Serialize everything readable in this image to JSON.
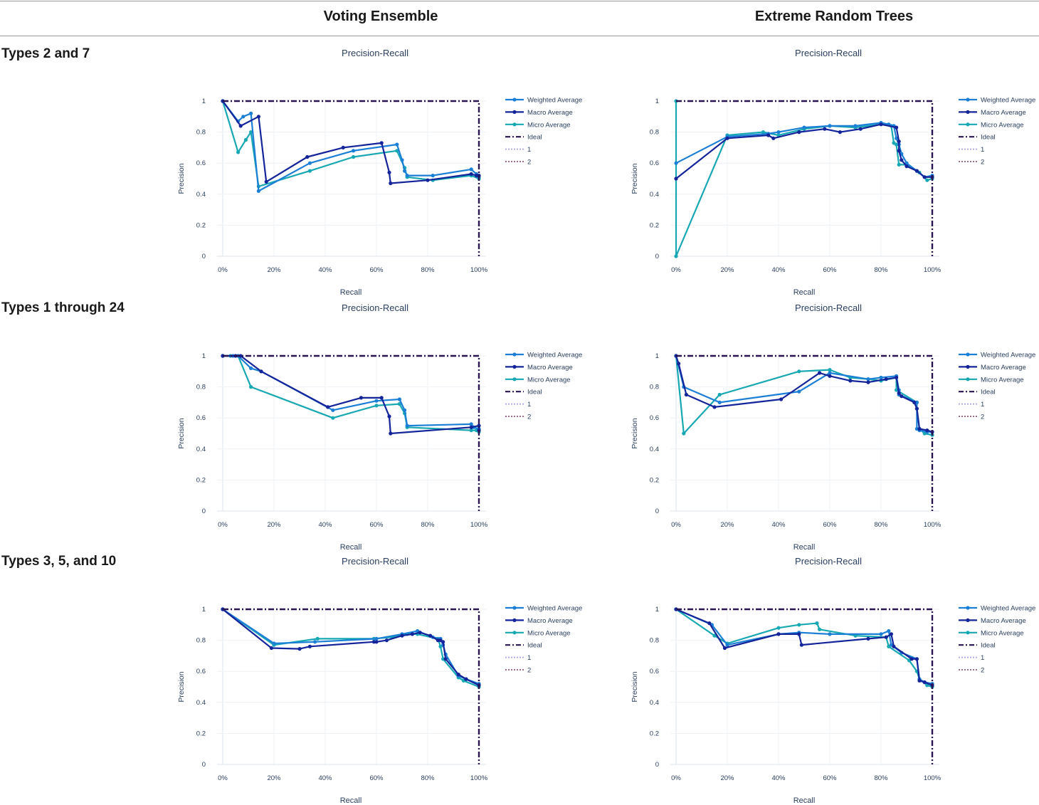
{
  "columns": [
    "Voting Ensemble",
    "Extreme Random Trees"
  ],
  "rows": [
    "Types 2 and 7",
    "Types 1 through 24",
    "Types 3, 5, and 10"
  ],
  "colors": {
    "weighted": "#1c7fd6",
    "macro": "#14249a",
    "micro": "#17a8b3",
    "ideal": "#2a1452",
    "class1": "#b7a9e6",
    "class2": "#9b6f8c",
    "grid": "#eef1f6",
    "zeroline": "#dde3ee",
    "text": "#2a3f5f"
  },
  "chart_data": [
    {
      "type": "line",
      "row": "Types 2 and 7",
      "column": "Voting Ensemble",
      "title": "Precision-Recall",
      "xlabel": "Recall",
      "ylabel": "Precision",
      "xlim": [
        0,
        1
      ],
      "ylim": [
        0,
        1
      ],
      "xticks": [
        "0%",
        "20%",
        "40%",
        "60%",
        "80%",
        "100%"
      ],
      "yticks": [
        "0",
        "0.2",
        "0.4",
        "0.6",
        "0.8",
        "1"
      ],
      "legend": [
        "Weighted Average",
        "Macro Average",
        "Micro Average",
        "Ideal",
        "1",
        "2"
      ],
      "series": [
        {
          "name": "Weighted Average",
          "key": "weighted",
          "x": [
            0,
            0.06,
            0.08,
            0.11,
            0.14,
            0.34,
            0.51,
            0.68,
            0.7,
            0.71,
            0.72,
            0.82,
            0.97,
            0.99,
            1.0
          ],
          "y": [
            1,
            0.87,
            0.9,
            0.92,
            0.42,
            0.6,
            0.68,
            0.72,
            0.62,
            0.55,
            0.52,
            0.52,
            0.56,
            0.53,
            0.51
          ]
        },
        {
          "name": "Macro Average",
          "key": "macro",
          "x": [
            0,
            0.07,
            0.14,
            0.17,
            0.33,
            0.47,
            0.62,
            0.65,
            0.655,
            0.8,
            0.97,
            0.99,
            1.0
          ],
          "y": [
            1,
            0.84,
            0.9,
            0.48,
            0.64,
            0.7,
            0.73,
            0.54,
            0.47,
            0.49,
            0.53,
            0.52,
            0.52
          ]
        },
        {
          "name": "Micro Average",
          "key": "micro",
          "x": [
            0,
            0.06,
            0.09,
            0.11,
            0.14,
            0.34,
            0.51,
            0.68,
            0.71,
            0.72,
            0.82,
            0.97,
            1.0
          ],
          "y": [
            1,
            0.67,
            0.75,
            0.8,
            0.45,
            0.55,
            0.64,
            0.68,
            0.57,
            0.51,
            0.49,
            0.52,
            0.5
          ]
        },
        {
          "name": "Ideal",
          "key": "ideal",
          "x": [
            0,
            1,
            1
          ],
          "y": [
            1,
            1,
            0
          ]
        }
      ]
    },
    {
      "type": "line",
      "row": "Types 2 and 7",
      "column": "Extreme Random Trees",
      "title": "Precision-Recall",
      "xlabel": "Recall",
      "ylabel": "Precision",
      "xlim": [
        0,
        1
      ],
      "ylim": [
        0,
        1
      ],
      "xticks": [
        "0%",
        "20%",
        "40%",
        "60%",
        "80%",
        "100%"
      ],
      "yticks": [
        "0",
        "0.2",
        "0.4",
        "0.6",
        "0.8",
        "1"
      ],
      "legend": [
        "Weighted Average",
        "Macro Average",
        "Micro Average",
        "Ideal",
        "1",
        "2"
      ],
      "series": [
        {
          "name": "Weighted Average",
          "key": "weighted",
          "x": [
            0,
            0.2,
            0.36,
            0.4,
            0.5,
            0.6,
            0.7,
            0.8,
            0.83,
            0.85,
            0.86,
            0.87,
            0.88,
            0.9,
            0.94,
            0.97,
            1.0
          ],
          "y": [
            0.6,
            0.77,
            0.79,
            0.8,
            0.83,
            0.84,
            0.84,
            0.86,
            0.85,
            0.84,
            0.76,
            0.72,
            0.66,
            0.6,
            0.55,
            0.51,
            0.52
          ]
        },
        {
          "name": "Macro Average",
          "key": "macro",
          "x": [
            0,
            0.2,
            0.36,
            0.38,
            0.48,
            0.58,
            0.64,
            0.72,
            0.8,
            0.86,
            0.87,
            0.87,
            0.88,
            0.9,
            0.94,
            0.97,
            1.0
          ],
          "y": [
            0.5,
            0.76,
            0.78,
            0.76,
            0.8,
            0.82,
            0.8,
            0.82,
            0.85,
            0.83,
            0.74,
            0.68,
            0.62,
            0.58,
            0.55,
            0.51,
            0.51
          ]
        },
        {
          "name": "Micro Average",
          "key": "micro",
          "x": [
            0,
            0,
            0.2,
            0.34,
            0.4,
            0.5,
            0.6,
            0.7,
            0.8,
            0.84,
            0.85,
            0.86,
            0.87,
            0.9,
            0.95,
            0.98,
            1.0
          ],
          "y": [
            1,
            0,
            0.78,
            0.8,
            0.78,
            0.82,
            0.84,
            0.83,
            0.85,
            0.84,
            0.73,
            0.72,
            0.59,
            0.59,
            0.54,
            0.49,
            0.5
          ]
        },
        {
          "name": "Ideal",
          "key": "ideal",
          "x": [
            0,
            1,
            1
          ],
          "y": [
            1,
            1,
            0
          ]
        }
      ]
    },
    {
      "type": "line",
      "row": "Types 1 through 24",
      "column": "Voting Ensemble",
      "title": "Precision-Recall",
      "xlabel": "Recall",
      "ylabel": "Precision",
      "xlim": [
        0,
        1
      ],
      "ylim": [
        0,
        1
      ],
      "xticks": [
        "0%",
        "20%",
        "40%",
        "60%",
        "80%",
        "100%"
      ],
      "yticks": [
        "0",
        "0.2",
        "0.4",
        "0.6",
        "0.8",
        "1"
      ],
      "legend": [
        "Weighted Average",
        "Macro Average",
        "Micro Average",
        "Ideal",
        "1",
        "2"
      ],
      "series": [
        {
          "name": "Weighted Average",
          "key": "weighted",
          "x": [
            0,
            0.04,
            0.06,
            0.11,
            0.15,
            0.43,
            0.6,
            0.69,
            0.71,
            0.72,
            0.97,
            0.98,
            1.0
          ],
          "y": [
            1,
            1,
            1,
            0.92,
            0.9,
            0.65,
            0.71,
            0.72,
            0.65,
            0.55,
            0.56,
            0.54,
            0.53
          ]
        },
        {
          "name": "Macro Average",
          "key": "macro",
          "x": [
            0,
            0.05,
            0.07,
            0.15,
            0.41,
            0.54,
            0.62,
            0.65,
            0.655,
            0.97,
            1.0,
            1.0
          ],
          "y": [
            1,
            1,
            1,
            0.9,
            0.67,
            0.73,
            0.73,
            0.61,
            0.5,
            0.54,
            0.55,
            0.52
          ]
        },
        {
          "name": "Micro Average",
          "key": "micro",
          "x": [
            0,
            0.03,
            0.06,
            0.11,
            0.43,
            0.6,
            0.69,
            0.71,
            0.72,
            0.97,
            0.99,
            1.0
          ],
          "y": [
            1,
            1,
            1,
            0.8,
            0.6,
            0.68,
            0.69,
            0.63,
            0.54,
            0.52,
            0.52,
            0.51
          ]
        },
        {
          "name": "Ideal",
          "key": "ideal",
          "x": [
            0,
            1,
            1
          ],
          "y": [
            1,
            1,
            0
          ]
        }
      ]
    },
    {
      "type": "line",
      "row": "Types 1 through 24",
      "column": "Extreme Random Trees",
      "title": "Precision-Recall",
      "xlabel": "Recall",
      "ylabel": "Precision",
      "xlim": [
        0,
        1
      ],
      "ylim": [
        0,
        1
      ],
      "xticks": [
        "0%",
        "20%",
        "40%",
        "60%",
        "80%",
        "100%"
      ],
      "yticks": [
        "0",
        "0.2",
        "0.4",
        "0.6",
        "0.8",
        "1"
      ],
      "legend": [
        "Weighted Average",
        "Macro Average",
        "Micro Average",
        "Ideal",
        "1",
        "2"
      ],
      "series": [
        {
          "name": "Weighted Average",
          "key": "weighted",
          "x": [
            0,
            0.03,
            0.17,
            0.48,
            0.6,
            0.75,
            0.8,
            0.86,
            0.87,
            0.87,
            0.94,
            0.94,
            0.95,
            0.98,
            1.0
          ],
          "y": [
            1,
            0.8,
            0.7,
            0.77,
            0.89,
            0.85,
            0.86,
            0.87,
            0.78,
            0.75,
            0.7,
            0.53,
            0.52,
            0.51,
            0.51
          ]
        },
        {
          "name": "Macro Average",
          "key": "macro",
          "x": [
            0,
            0.01,
            0.04,
            0.15,
            0.41,
            0.56,
            0.6,
            0.68,
            0.75,
            0.82,
            0.86,
            0.87,
            0.88,
            0.93,
            0.94,
            0.95,
            0.98,
            1.0
          ],
          "y": [
            1,
            0.95,
            0.75,
            0.67,
            0.72,
            0.89,
            0.87,
            0.84,
            0.83,
            0.85,
            0.86,
            0.76,
            0.74,
            0.7,
            0.66,
            0.53,
            0.52,
            0.51
          ]
        },
        {
          "name": "Micro Average",
          "key": "micro",
          "x": [
            0,
            0.03,
            0.17,
            0.48,
            0.6,
            0.68,
            0.75,
            0.8,
            0.86,
            0.86,
            0.94,
            0.94,
            0.95,
            0.97,
            1.0
          ],
          "y": [
            1,
            0.5,
            0.75,
            0.9,
            0.91,
            0.86,
            0.85,
            0.84,
            0.86,
            0.78,
            0.7,
            0.66,
            0.53,
            0.5,
            0.49
          ]
        },
        {
          "name": "Ideal",
          "key": "ideal",
          "x": [
            0,
            1,
            1
          ],
          "y": [
            1,
            1,
            0
          ]
        }
      ]
    },
    {
      "type": "line",
      "row": "Types 3, 5, and 10",
      "column": "Voting Ensemble",
      "title": "Precision-Recall",
      "xlabel": "Recall",
      "ylabel": "Precision",
      "xlim": [
        0,
        1
      ],
      "ylim": [
        0,
        1
      ],
      "xticks": [
        "0%",
        "20%",
        "40%",
        "60%",
        "80%",
        "100%"
      ],
      "yticks": [
        "0",
        "0.2",
        "0.4",
        "0.6",
        "0.8",
        "1"
      ],
      "legend": [
        "Weighted Average",
        "Macro Average",
        "Micro Average",
        "Ideal",
        "1",
        "2"
      ],
      "series": [
        {
          "name": "Weighted Average",
          "key": "weighted",
          "x": [
            0,
            0.2,
            0.36,
            0.6,
            0.7,
            0.76,
            0.82,
            0.85,
            0.86,
            0.87,
            0.92,
            0.95,
            1.0
          ],
          "y": [
            1,
            0.78,
            0.79,
            0.81,
            0.84,
            0.86,
            0.82,
            0.81,
            0.77,
            0.71,
            0.57,
            0.55,
            0.52
          ]
        },
        {
          "name": "Macro Average",
          "key": "macro",
          "x": [
            0,
            0.19,
            0.3,
            0.34,
            0.59,
            0.6,
            0.64,
            0.7,
            0.74,
            0.77,
            0.81,
            0.84,
            0.85,
            0.86,
            0.87,
            0.92,
            0.95,
            1.0
          ],
          "y": [
            1,
            0.75,
            0.745,
            0.76,
            0.79,
            0.79,
            0.8,
            0.83,
            0.84,
            0.85,
            0.83,
            0.8,
            0.8,
            0.79,
            0.68,
            0.58,
            0.55,
            0.51
          ]
        },
        {
          "name": "Micro Average",
          "key": "micro",
          "x": [
            0,
            0.2,
            0.37,
            0.59,
            0.66,
            0.72,
            0.76,
            0.84,
            0.85,
            0.86,
            0.92,
            0.94,
            1.0
          ],
          "y": [
            1,
            0.77,
            0.81,
            0.81,
            0.82,
            0.84,
            0.84,
            0.81,
            0.76,
            0.68,
            0.56,
            0.54,
            0.5
          ]
        },
        {
          "name": "Ideal",
          "key": "ideal",
          "x": [
            0,
            1,
            1
          ],
          "y": [
            1,
            1,
            0
          ]
        }
      ]
    },
    {
      "type": "line",
      "row": "Types 3, 5, and 10",
      "column": "Extreme Random Trees",
      "title": "Precision-Recall",
      "xlabel": "Recall",
      "ylabel": "Precision",
      "xlim": [
        0,
        1
      ],
      "ylim": [
        0,
        1
      ],
      "xticks": [
        "0%",
        "20%",
        "40%",
        "60%",
        "80%",
        "100%"
      ],
      "yticks": [
        "0",
        "0.2",
        "0.4",
        "0.6",
        "0.8",
        "1"
      ],
      "legend": [
        "Weighted Average",
        "Macro Average",
        "Micro Average",
        "Ideal",
        "1",
        "2"
      ],
      "series": [
        {
          "name": "Weighted Average",
          "key": "weighted",
          "x": [
            0,
            0.14,
            0.2,
            0.4,
            0.48,
            0.6,
            0.8,
            0.83,
            0.84,
            0.88,
            0.94,
            0.95,
            0.97,
            1.0
          ],
          "y": [
            1,
            0.9,
            0.77,
            0.84,
            0.85,
            0.84,
            0.84,
            0.86,
            0.77,
            0.72,
            0.68,
            0.55,
            0.53,
            0.52
          ]
        },
        {
          "name": "Macro Average",
          "key": "macro",
          "x": [
            0,
            0.13,
            0.19,
            0.4,
            0.48,
            0.49,
            0.75,
            0.82,
            0.84,
            0.85,
            0.92,
            0.94,
            0.95,
            0.97,
            1.0
          ],
          "y": [
            1,
            0.91,
            0.75,
            0.84,
            0.84,
            0.77,
            0.81,
            0.82,
            0.84,
            0.76,
            0.68,
            0.68,
            0.54,
            0.53,
            0.51
          ]
        },
        {
          "name": "Micro Average",
          "key": "micro",
          "x": [
            0,
            0.15,
            0.2,
            0.4,
            0.48,
            0.55,
            0.56,
            0.7,
            0.82,
            0.83,
            0.91,
            0.94,
            0.95,
            0.98,
            1.0
          ],
          "y": [
            1,
            0.83,
            0.78,
            0.88,
            0.9,
            0.91,
            0.87,
            0.83,
            0.82,
            0.76,
            0.67,
            0.6,
            0.55,
            0.51,
            0.5
          ]
        },
        {
          "name": "Ideal",
          "key": "ideal",
          "x": [
            0,
            1,
            1
          ],
          "y": [
            1,
            1,
            0
          ]
        }
      ]
    }
  ]
}
